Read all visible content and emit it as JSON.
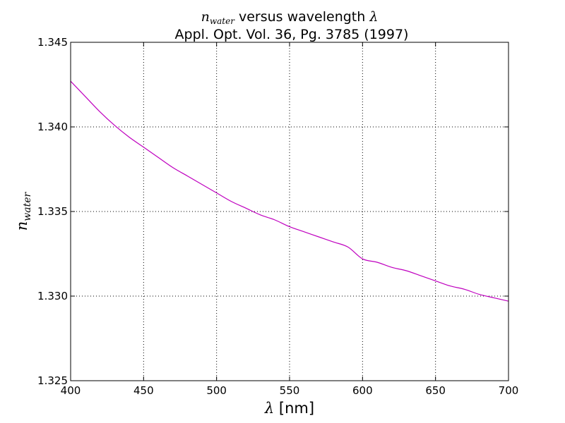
{
  "chart_data": {
    "type": "line",
    "title": {
      "line1": {
        "symbol_base": "n",
        "symbol_subscript": "water",
        "text": " versus wavelength ",
        "lambda": "λ"
      },
      "line2": "Appl. Opt. Vol. 36, Pg. 3785 (1997)"
    },
    "xlabel": {
      "lambda": "λ",
      "unit": " [nm]"
    },
    "ylabel": {
      "symbol_base": "n",
      "symbol_subscript": "water"
    },
    "xlim": [
      400,
      700
    ],
    "ylim": [
      1.325,
      1.345
    ],
    "xticks": [
      400,
      450,
      500,
      550,
      600,
      650,
      700
    ],
    "xtick_labels": [
      "400",
      "450",
      "500",
      "550",
      "600",
      "650",
      "700"
    ],
    "yticks": [
      1.325,
      1.33,
      1.335,
      1.34,
      1.345
    ],
    "ytick_labels": [
      "1.325",
      "1.330",
      "1.335",
      "1.340",
      "1.345"
    ],
    "grid": true,
    "series": [
      {
        "name": "n_water",
        "color": "#bf00bf",
        "x": [
          400,
          410,
          420,
          430,
          440,
          450,
          460,
          470,
          480,
          490,
          500,
          510,
          520,
          530,
          540,
          550,
          560,
          570,
          580,
          590,
          600,
          610,
          620,
          630,
          640,
          650,
          660,
          670,
          680,
          690,
          700
        ],
        "y": [
          1.3427,
          1.3418,
          1.3409,
          1.3401,
          1.3394,
          1.3388,
          1.3382,
          1.3376,
          1.3371,
          1.3366,
          1.3361,
          1.3356,
          1.3352,
          1.3348,
          1.3345,
          1.3341,
          1.3338,
          1.3335,
          1.3332,
          1.3329,
          1.3322,
          1.332,
          1.3317,
          1.3315,
          1.3312,
          1.3309,
          1.3306,
          1.3304,
          1.3301,
          1.3299,
          1.3297
        ]
      }
    ]
  }
}
